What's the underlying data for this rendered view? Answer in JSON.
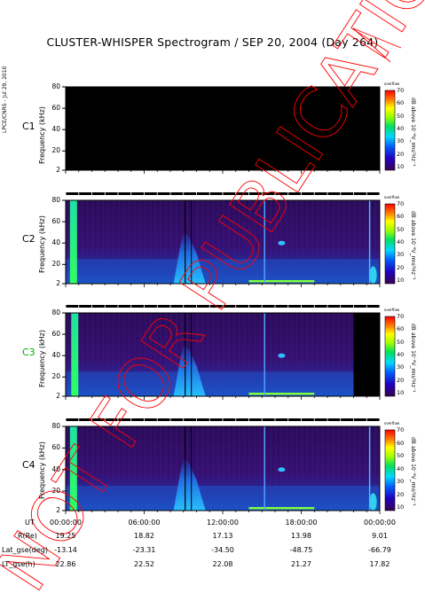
{
  "title": "CLUSTER-WHISPER Spectrogram / SEP 20, 2004 (Day 264)",
  "credit": "LPCE/CNRS - Jul 29, 2010",
  "watermark": "NOT FOR PUBLICATION",
  "colorbar": {
    "ticks": [
      "70",
      "60",
      "50",
      "40",
      "30",
      "20",
      "10"
    ],
    "label": "dB above 10⁻⁸V_rms²Hz⁻¹",
    "top_text": "overflow"
  },
  "colors": {
    "c3_label": "#00b000",
    "background": "#000000",
    "watermark": "#ff0000"
  },
  "chart_data": [
    {
      "type": "heatmap",
      "panel": "C1",
      "label": "C1",
      "ylabel": "Frequency (kHz)",
      "yticks": [
        "80",
        "60",
        "40",
        "20",
        "2"
      ],
      "ylim": [
        2,
        80
      ],
      "x_range_ut": [
        "00:00:00",
        "24:00:00"
      ],
      "status": "no data (all black)"
    },
    {
      "type": "heatmap",
      "panel": "C2",
      "label": "C2",
      "ylabel": "Frequency (kHz)",
      "yticks": [
        "80",
        "60",
        "40",
        "20",
        "2"
      ],
      "ylim": [
        2,
        80
      ],
      "x_range_ut": [
        "00:00:00",
        "24:00:00"
      ],
      "features": [
        {
          "time_h": 0.8,
          "kind": "broadband emission",
          "level_db": 50
        },
        {
          "time_h": 9.2,
          "kind": "intense broadband emission up to 50 kHz",
          "level_db": 40
        },
        {
          "time_h": 16.5,
          "kind": "narrowband line near 40 kHz",
          "level_db": 45
        },
        {
          "time_h": 23.5,
          "kind": "broadband emission below 20 kHz",
          "level_db": 35
        }
      ]
    },
    {
      "type": "heatmap",
      "panel": "C3",
      "label": "C3",
      "ylabel": "Frequency (kHz)",
      "yticks": [
        "80",
        "60",
        "40",
        "20",
        "2"
      ],
      "ylim": [
        2,
        80
      ],
      "x_range_ut": [
        "00:00:00",
        "24:00:00"
      ],
      "features": [
        {
          "time_h": 0.9,
          "kind": "broadband emission",
          "level_db": 50
        },
        {
          "time_h": 9.2,
          "kind": "intense broadband emission up to 50 kHz",
          "level_db": 40
        },
        {
          "time_h": 16.5,
          "kind": "narrowband line near 40 kHz",
          "level_db": 45
        },
        {
          "time_h": 22.0,
          "kind": "data gap from ~22:00",
          "level_db": 0
        }
      ]
    },
    {
      "type": "heatmap",
      "panel": "C4",
      "label": "C4",
      "ylabel": "Frequency (kHz)",
      "yticks": [
        "80",
        "60",
        "40",
        "20",
        "2"
      ],
      "ylim": [
        2,
        80
      ],
      "x_range_ut": [
        "00:00:00",
        "24:00:00"
      ],
      "features": [
        {
          "time_h": 0.8,
          "kind": "broadband emission",
          "level_db": 50
        },
        {
          "time_h": 9.2,
          "kind": "intense broadband emission up to 50 kHz",
          "level_db": 40
        },
        {
          "time_h": 16.5,
          "kind": "narrowband line near 40 kHz",
          "level_db": 45
        },
        {
          "time_h": 23.5,
          "kind": "broadband emission below 20 kHz",
          "level_db": 35
        }
      ]
    }
  ],
  "orbit_table": {
    "rows": [
      {
        "label": "UT",
        "values": [
          "00:00:00",
          "06:00:00",
          "12:00:00",
          "18:00:00",
          "00:00:00"
        ]
      },
      {
        "label": "R(Re)",
        "values": [
          "19.25",
          "18.82",
          "17.13",
          "13.98",
          "9.01"
        ]
      },
      {
        "label": "Lat_gse(deg)",
        "values": [
          "-13.14",
          "-23.31",
          "-34.50",
          "-48.75",
          "-66.79"
        ]
      },
      {
        "label": "LT_gse(h)",
        "values": [
          "22.86",
          "22.52",
          "22.08",
          "21.27",
          "17.82"
        ]
      }
    ]
  }
}
